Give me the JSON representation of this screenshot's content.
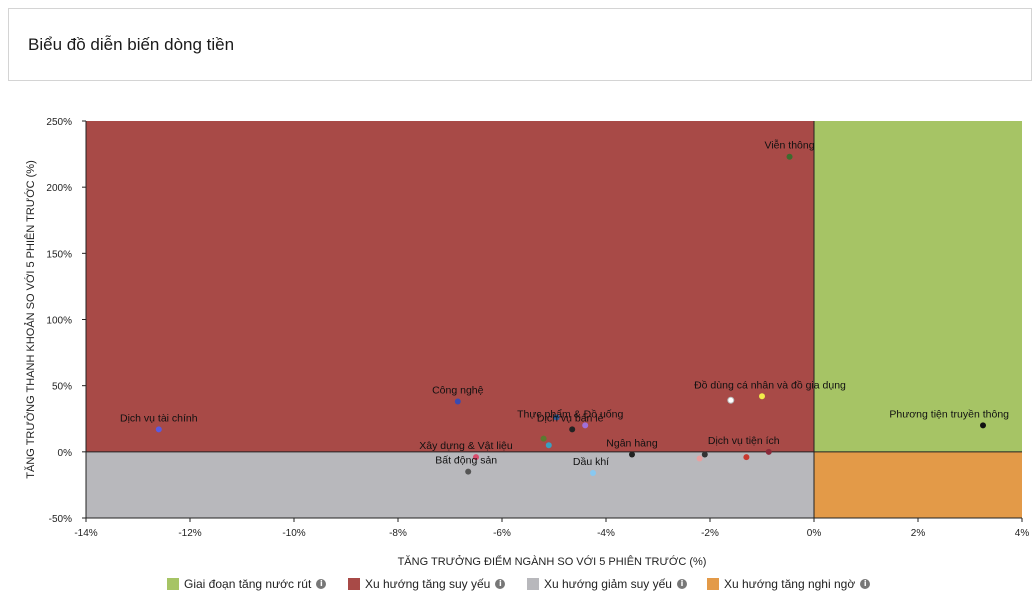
{
  "header": {
    "title": "Biểu đồ diễn biến dòng tiền"
  },
  "chart_data": {
    "type": "scatter",
    "xlabel": "TĂNG TRƯỞNG ĐIỂM NGÀNH SO VỚI 5 PHIÊN TRƯỚC (%)",
    "ylabel": "TĂNG TRƯỞNG THANH KHOẢN SO VỚI 5 PHIÊN TRƯỚC (%)",
    "xlim": [
      -14,
      4
    ],
    "ylim": [
      -50,
      250
    ],
    "xticks": [
      -14,
      -12,
      -10,
      -8,
      -6,
      -4,
      -2,
      0,
      2,
      4
    ],
    "xtick_labels": [
      "-14%",
      "-12%",
      "-10%",
      "-8%",
      "-6%",
      "-4%",
      "-2%",
      "0%",
      "2%",
      "4%"
    ],
    "yticks": [
      -50,
      0,
      50,
      100,
      150,
      200,
      250
    ],
    "ytick_labels": [
      "-50%",
      "0%",
      "50%",
      "100%",
      "150%",
      "200%",
      "250%"
    ],
    "quadrants": [
      {
        "name": "Giai đoạn tăng nước rút",
        "color": "#a6c465",
        "x": [
          0,
          4
        ],
        "y": [
          0,
          250
        ]
      },
      {
        "name": "Xu hướng tăng suy yếu",
        "color": "#a84a47",
        "x": [
          -14,
          0
        ],
        "y": [
          0,
          250
        ]
      },
      {
        "name": "Xu hướng giảm suy yếu",
        "color": "#b8b8bc",
        "x": [
          -14,
          0
        ],
        "y": [
          -50,
          0
        ]
      },
      {
        "name": "Xu hướng tăng nghi ngờ",
        "color": "#e39a48",
        "x": [
          0,
          4
        ],
        "y": [
          -50,
          0
        ]
      }
    ],
    "points": [
      {
        "label": "Viễn thông",
        "x": -0.47,
        "y": 223,
        "color": "#3d6b2e"
      },
      {
        "label": "Phương tiện truyền thông",
        "x": 3.25,
        "y": 20,
        "color": "#111111"
      },
      {
        "label": "Đồ dùng cá nhân và đồ gia dụng",
        "x": -1.0,
        "y": 42,
        "color": "#f2ec4a"
      },
      {
        "label": "",
        "x": -1.6,
        "y": 39,
        "color": "#ffffff"
      },
      {
        "label": "Dịch vụ tiện ích",
        "x": -0.87,
        "y": 0,
        "color": "#8a2a3a"
      },
      {
        "label": "",
        "x": -1.3,
        "y": -4,
        "color": "#c8382f"
      },
      {
        "label": "",
        "x": -2.1,
        "y": -2,
        "color": "#333333"
      },
      {
        "label": "",
        "x": -2.2,
        "y": -5,
        "color": "#e8a0a0"
      },
      {
        "label": "Ngân hàng",
        "x": -3.5,
        "y": -2,
        "color": "#222222"
      },
      {
        "label": "Dầu khí",
        "x": -4.25,
        "y": -16,
        "color": "#88c8f0"
      },
      {
        "label": "Thực phẩm & Đồ uống",
        "x": -4.4,
        "y": 20,
        "color": "#a070d8"
      },
      {
        "label": "Dịch vụ bán lẻ",
        "x": -4.65,
        "y": 17,
        "color": "#222222"
      },
      {
        "label": "",
        "x": -5.2,
        "y": 10,
        "color": "#5a7a30"
      },
      {
        "label": "",
        "x": -5.1,
        "y": 5,
        "color": "#3aa0c0"
      },
      {
        "label": "",
        "x": -4.95,
        "y": 26,
        "color": "#2a60a0"
      },
      {
        "label": "Công nghệ",
        "x": -6.85,
        "y": 38,
        "color": "#3a4ab0"
      },
      {
        "label": "Xây dựng & Vật liệu",
        "x": -6.5,
        "y": -4,
        "color": "#d84a6a"
      },
      {
        "label": "Bất động sản",
        "x": -6.65,
        "y": -15,
        "color": "#555555"
      },
      {
        "label": "Dịch vụ tài chính",
        "x": -12.6,
        "y": 17,
        "color": "#5a5ae0"
      }
    ]
  },
  "legend": [
    {
      "label": "Giai đoạn tăng nước rút",
      "color": "#a6c465",
      "info": "i"
    },
    {
      "label": "Xu hướng tăng suy yếu",
      "color": "#a84a47",
      "info": "i"
    },
    {
      "label": "Xu hướng giảm suy yếu",
      "color": "#b8b8bc",
      "info": "i"
    },
    {
      "label": "Xu hướng tăng nghi ngờ",
      "color": "#e39a48",
      "info": "i"
    }
  ]
}
